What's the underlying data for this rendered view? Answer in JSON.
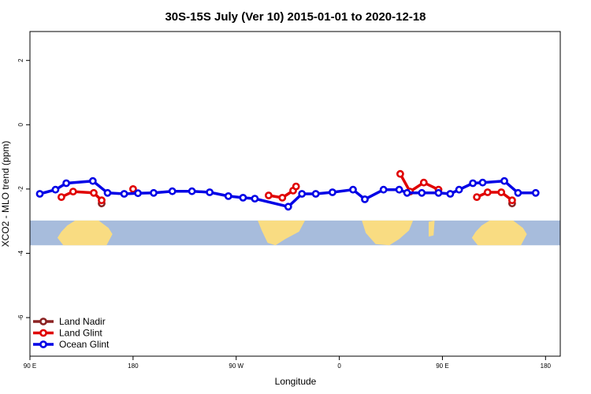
{
  "chart_data": {
    "type": "line",
    "title": "30S-15S July (Ver 10)   2015-01-01 to 2020-12-18",
    "xlabel": "Longitude",
    "ylabel": "XCO2 - MLO trend (ppm)",
    "xlim": [
      -90,
      180
    ],
    "ylim": [
      -7.2,
      2.9
    ],
    "x_ticks": [
      {
        "value": -90,
        "label": "90 E"
      },
      {
        "value": -37.5,
        "label": "180"
      },
      {
        "value": 15,
        "label": "90 W"
      },
      {
        "value": 67.5,
        "label": "0"
      },
      {
        "value": 120,
        "label": "90 E"
      },
      {
        "value": 172.5,
        "label": "180"
      }
    ],
    "y_ticks": [
      2,
      0,
      -2,
      -4,
      -6
    ],
    "legend": {
      "position": "bottom-left",
      "entries": [
        {
          "name": "Land Nadir",
          "color": "#8b2323"
        },
        {
          "name": "Land Glint",
          "color": "#e00000"
        },
        {
          "name": "Ocean Glint",
          "color": "#0000e6"
        }
      ]
    },
    "map_band": {
      "y_top": -2.98,
      "y_bottom": -3.75,
      "ocean_color": "#a7bcdc",
      "land_color": "#f9dc82"
    },
    "series": [
      {
        "name": "Land Nadir",
        "color": "#8b2323",
        "segments": [
          [
            [
              -53.5,
              -2.45
            ]
          ],
          [
            [
              155.5,
              -2.45
            ]
          ]
        ]
      },
      {
        "name": "Land Glint",
        "color": "#e00000",
        "segments": [
          [
            [
              -74,
              -2.25
            ],
            [
              -68,
              -2.08
            ],
            [
              -57.5,
              -2.12
            ],
            [
              -53.5,
              -2.35
            ]
          ],
          [
            [
              -37.5,
              -2.0
            ]
          ],
          [
            [
              31.5,
              -2.2
            ],
            [
              38.5,
              -2.27
            ],
            [
              44,
              -2.05
            ],
            [
              45.5,
              -1.92
            ]
          ],
          [
            [
              98.5,
              -1.53
            ],
            [
              103.5,
              -2.08
            ],
            [
              110.5,
              -1.8
            ],
            [
              118,
              -2.02
            ]
          ],
          [
            [
              137.5,
              -2.25
            ],
            [
              143,
              -2.1
            ],
            [
              150,
              -2.1
            ],
            [
              155.5,
              -2.35
            ]
          ]
        ]
      },
      {
        "name": "Ocean Glint",
        "color": "#0000e6",
        "segments": [
          [
            [
              -85,
              -2.15
            ],
            [
              -77,
              -2.02
            ],
            [
              -71.5,
              -1.82
            ],
            [
              -58,
              -1.75
            ],
            [
              -50.5,
              -2.12
            ],
            [
              -42,
              -2.15
            ],
            [
              -35,
              -2.13
            ],
            [
              -27,
              -2.12
            ],
            [
              -17.5,
              -2.07
            ],
            [
              -7.5,
              -2.07
            ],
            [
              1.5,
              -2.1
            ],
            [
              11,
              -2.22
            ],
            [
              18.5,
              -2.27
            ],
            [
              24.5,
              -2.3
            ],
            [
              41.5,
              -2.55
            ],
            [
              48.5,
              -2.15
            ],
            [
              55.5,
              -2.15
            ],
            [
              64,
              -2.1
            ],
            [
              74.5,
              -2.02
            ],
            [
              80.5,
              -2.32
            ],
            [
              90,
              -2.02
            ],
            [
              98,
              -2.02
            ],
            [
              102,
              -2.12
            ],
            [
              109.5,
              -2.12
            ],
            [
              118,
              -2.12
            ],
            [
              124,
              -2.15
            ],
            [
              128.5,
              -2.02
            ],
            [
              135.5,
              -1.82
            ],
            [
              140.5,
              -1.8
            ],
            [
              151.5,
              -1.75
            ],
            [
              158.5,
              -2.12
            ],
            [
              167.5,
              -2.12
            ]
          ]
        ]
      }
    ]
  }
}
